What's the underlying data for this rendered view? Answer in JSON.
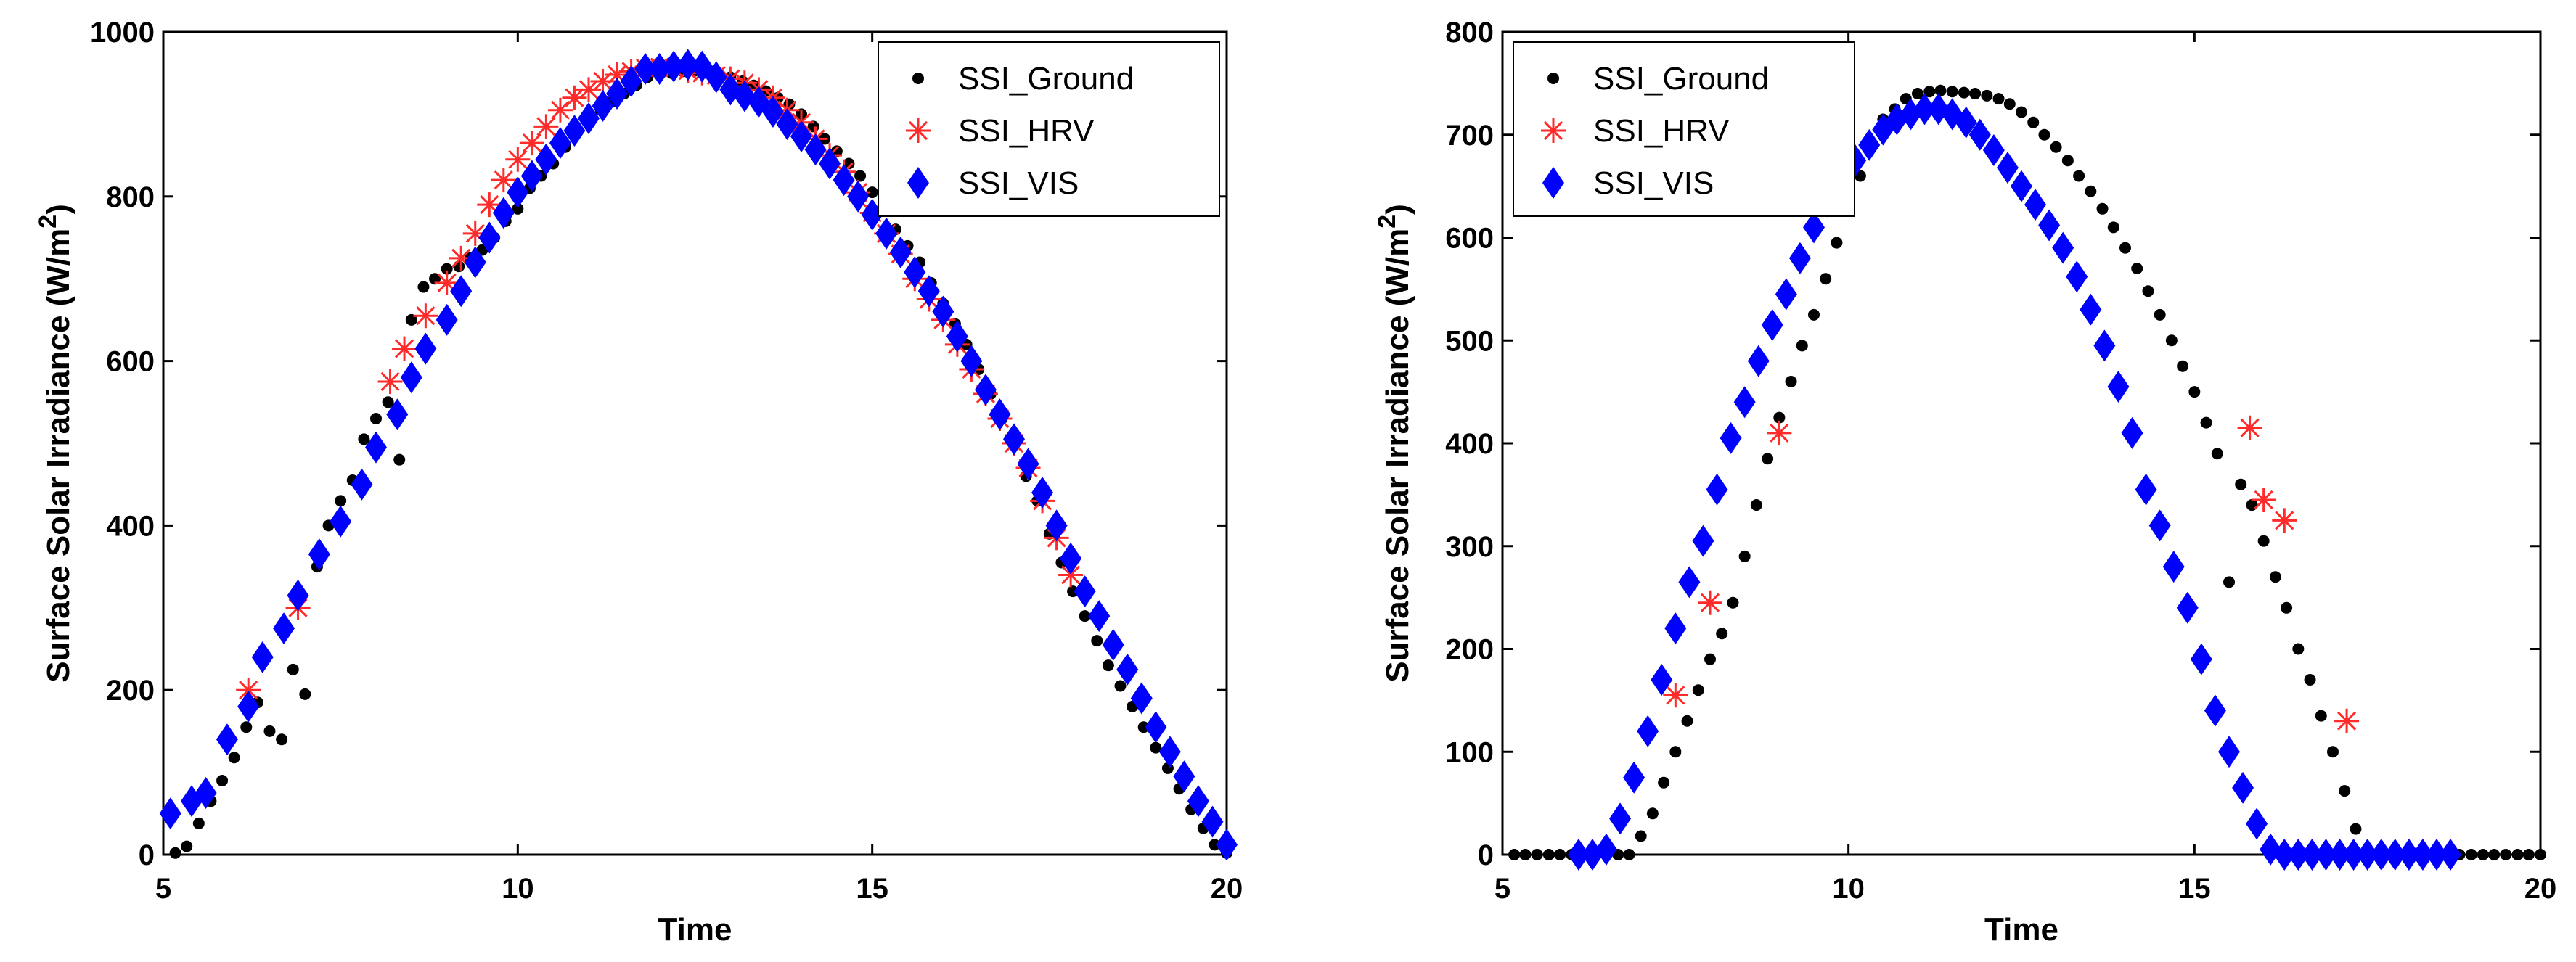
{
  "chart_data": [
    {
      "type": "scatter",
      "title": "",
      "xlabel": "Time",
      "ylabel": "Surface Solar Irradiance  (W/m",
      "ylabel_sup": "2",
      "ylabel_close": ")",
      "xlim": [
        5,
        20
      ],
      "ylim": [
        0,
        1000
      ],
      "xticks": [
        5,
        10,
        15,
        20
      ],
      "yticks": [
        0,
        200,
        400,
        600,
        800,
        1000
      ],
      "xtick_labels": [
        "5",
        "10",
        "15",
        "20"
      ],
      "ytick_labels": [
        "0",
        "200",
        "400",
        "600",
        "800",
        "1000"
      ],
      "legend_position": "top-right",
      "series": [
        {
          "name": "SSI_Ground",
          "marker": "dot",
          "color": "#000000",
          "x": [
            5.17,
            5.33,
            5.5,
            5.67,
            5.83,
            6.0,
            6.17,
            6.33,
            6.5,
            6.67,
            6.83,
            7.0,
            7.17,
            7.33,
            7.5,
            7.67,
            7.83,
            8.0,
            8.17,
            8.33,
            8.5,
            8.67,
            8.83,
            9.0,
            9.17,
            9.33,
            9.5,
            9.67,
            9.83,
            10.0,
            10.17,
            10.33,
            10.5,
            10.67,
            10.83,
            11.0,
            11.17,
            11.33,
            11.5,
            11.67,
            11.83,
            12.0,
            12.17,
            12.33,
            12.5,
            12.67,
            12.83,
            13.0,
            13.17,
            13.33,
            13.5,
            13.67,
            13.83,
            14.0,
            14.17,
            14.33,
            14.5,
            14.67,
            14.83,
            15.0,
            15.17,
            15.33,
            15.5,
            15.67,
            15.83,
            16.0,
            16.17,
            16.33,
            16.5,
            16.67,
            16.83,
            17.0,
            17.17,
            17.33,
            17.5,
            17.67,
            17.83,
            18.0,
            18.17,
            18.33,
            18.5,
            18.67,
            18.83,
            19.0,
            19.17,
            19.33,
            19.5,
            19.67,
            19.83,
            20.0
          ],
          "y": [
            2,
            10,
            38,
            65,
            90,
            118,
            155,
            185,
            150,
            140,
            225,
            195,
            350,
            400,
            430,
            455,
            505,
            530,
            550,
            480,
            650,
            690,
            700,
            712,
            715,
            725,
            735,
            750,
            770,
            785,
            810,
            825,
            840,
            860,
            880,
            890,
            905,
            915,
            925,
            935,
            945,
            948,
            950,
            952,
            953,
            950,
            948,
            945,
            940,
            935,
            928,
            920,
            912,
            900,
            885,
            870,
            855,
            840,
            825,
            805,
            785,
            760,
            740,
            720,
            695,
            670,
            645,
            620,
            590,
            560,
            530,
            500,
            460,
            430,
            390,
            355,
            320,
            290,
            260,
            230,
            205,
            180,
            155,
            130,
            105,
            80,
            55,
            32,
            12,
            2
          ]
        },
        {
          "name": "SSI_HRV",
          "marker": "asterisk",
          "color": "#ff2a2a",
          "x": [
            6.2,
            6.9,
            8.2,
            8.4,
            8.7,
            9.0,
            9.2,
            9.4,
            9.6,
            9.8,
            10.0,
            10.2,
            10.4,
            10.6,
            10.8,
            11.0,
            11.2,
            11.4,
            11.6,
            11.8,
            12.0,
            12.2,
            12.4,
            12.6,
            12.8,
            13.0,
            13.2,
            13.4,
            13.6,
            13.8,
            14.0,
            14.2,
            14.4,
            14.6,
            14.8,
            15.0,
            15.2,
            15.4,
            15.6,
            15.8,
            16.0,
            16.2,
            16.4,
            16.6,
            16.8,
            17.0,
            17.2,
            17.4,
            17.6,
            17.8
          ],
          "y": [
            200,
            300,
            575,
            615,
            655,
            695,
            725,
            755,
            790,
            820,
            845,
            865,
            885,
            905,
            920,
            930,
            940,
            948,
            952,
            956,
            957,
            956,
            953,
            950,
            947,
            943,
            938,
            930,
            920,
            905,
            890,
            870,
            850,
            830,
            805,
            780,
            755,
            730,
            700,
            675,
            650,
            620,
            590,
            560,
            530,
            500,
            470,
            430,
            385,
            340
          ]
        },
        {
          "name": "SSI_VIS",
          "marker": "diamond",
          "color": "#0000ff",
          "x": [
            5.1,
            5.4,
            5.6,
            5.9,
            6.2,
            6.4,
            6.7,
            6.9,
            7.2,
            7.5,
            7.8,
            8.0,
            8.3,
            8.5,
            8.7,
            9.0,
            9.2,
            9.4,
            9.6,
            9.8,
            10.0,
            10.2,
            10.4,
            10.6,
            10.8,
            11.0,
            11.2,
            11.4,
            11.6,
            11.8,
            12.0,
            12.2,
            12.4,
            12.6,
            12.8,
            13.0,
            13.2,
            13.4,
            13.6,
            13.8,
            14.0,
            14.2,
            14.4,
            14.6,
            14.8,
            15.0,
            15.2,
            15.4,
            15.6,
            15.8,
            16.0,
            16.2,
            16.4,
            16.6,
            16.8,
            17.0,
            17.2,
            17.4,
            17.6,
            17.8,
            18.0,
            18.2,
            18.4,
            18.6,
            18.8,
            19.0,
            19.2,
            19.4,
            19.6,
            19.8,
            20.0
          ],
          "y": [
            50,
            65,
            75,
            140,
            180,
            240,
            275,
            315,
            365,
            405,
            450,
            495,
            535,
            580,
            615,
            650,
            685,
            720,
            750,
            780,
            805,
            825,
            845,
            865,
            880,
            895,
            910,
            925,
            940,
            955,
            955,
            958,
            960,
            958,
            945,
            930,
            922,
            915,
            903,
            888,
            873,
            857,
            840,
            820,
            800,
            778,
            755,
            732,
            708,
            685,
            660,
            630,
            600,
            565,
            535,
            505,
            475,
            440,
            400,
            360,
            320,
            290,
            255,
            225,
            190,
            155,
            125,
            95,
            65,
            40,
            12
          ]
        }
      ]
    },
    {
      "type": "scatter",
      "title": "",
      "xlabel": "Time",
      "ylabel": "Surface Solar Irradiance  (W/m",
      "ylabel_sup": "2",
      "ylabel_close": ")",
      "xlim": [
        5,
        20
      ],
      "ylim": [
        0,
        800
      ],
      "xticks": [
        5,
        10,
        15,
        20
      ],
      "yticks": [
        0,
        100,
        200,
        300,
        400,
        500,
        600,
        700,
        800
      ],
      "xtick_labels": [
        "5",
        "10",
        "15",
        "20"
      ],
      "ytick_labels": [
        "0",
        "100",
        "200",
        "300",
        "400",
        "500",
        "600",
        "700",
        "800"
      ],
      "legend_position": "top-left",
      "series": [
        {
          "name": "SSI_Ground",
          "marker": "dot",
          "color": "#000000",
          "x": [
            5.17,
            5.33,
            5.5,
            5.67,
            5.83,
            6.0,
            6.17,
            6.33,
            6.5,
            6.67,
            6.83,
            7.0,
            7.17,
            7.33,
            7.5,
            7.67,
            7.83,
            8.0,
            8.17,
            8.33,
            8.5,
            8.67,
            8.83,
            9.0,
            9.17,
            9.33,
            9.5,
            9.67,
            9.83,
            10.0,
            10.17,
            10.33,
            10.5,
            10.67,
            10.83,
            11.0,
            11.17,
            11.33,
            11.5,
            11.67,
            11.83,
            12.0,
            12.17,
            12.33,
            12.5,
            12.67,
            12.83,
            13.0,
            13.17,
            13.33,
            13.5,
            13.67,
            13.83,
            14.0,
            14.17,
            14.33,
            14.5,
            14.67,
            14.83,
            15.0,
            15.17,
            15.33,
            15.5,
            15.67,
            15.83,
            16.0,
            16.17,
            16.33,
            16.5,
            16.67,
            16.83,
            17.0,
            17.17,
            17.33,
            17.5,
            17.67,
            17.83,
            18.0,
            18.17,
            18.33,
            18.5,
            18.67,
            18.83,
            19.0,
            19.17,
            19.33,
            19.5,
            19.67,
            19.83,
            20.0
          ],
          "y": [
            0,
            0,
            0,
            0,
            0,
            0,
            0,
            0,
            0,
            0,
            0,
            18,
            40,
            70,
            100,
            130,
            160,
            190,
            215,
            245,
            290,
            340,
            385,
            425,
            460,
            495,
            525,
            560,
            595,
            630,
            660,
            690,
            715,
            725,
            735,
            740,
            742,
            743,
            742,
            741,
            740,
            738,
            735,
            730,
            722,
            712,
            700,
            688,
            675,
            660,
            645,
            628,
            610,
            590,
            570,
            548,
            525,
            500,
            475,
            450,
            420,
            390,
            265,
            360,
            340,
            305,
            270,
            240,
            200,
            170,
            135,
            100,
            62,
            25,
            5,
            0,
            0,
            0,
            0,
            0,
            0,
            0,
            0,
            0,
            0,
            0,
            0,
            0,
            0,
            0
          ]
        },
        {
          "name": "SSI_HRV",
          "marker": "asterisk",
          "color": "#ff2a2a",
          "x": [
            7.5,
            8.0,
            9.0,
            15.8,
            16.0,
            16.3,
            17.2
          ],
          "y": [
            155,
            245,
            410,
            415,
            345,
            325,
            130
          ]
        },
        {
          "name": "SSI_VIS",
          "marker": "diamond",
          "color": "#0000ff",
          "x": [
            6.1,
            6.3,
            6.5,
            6.7,
            6.9,
            7.1,
            7.3,
            7.5,
            7.7,
            7.9,
            8.1,
            8.3,
            8.5,
            8.7,
            8.9,
            9.1,
            9.3,
            9.5,
            9.7,
            9.9,
            10.1,
            10.3,
            10.5,
            10.7,
            10.9,
            11.1,
            11.3,
            11.5,
            11.7,
            11.9,
            12.1,
            12.3,
            12.5,
            12.7,
            12.9,
            13.1,
            13.3,
            13.5,
            13.7,
            13.9,
            14.1,
            14.3,
            14.5,
            14.7,
            14.9,
            15.1,
            15.3,
            15.5,
            15.7,
            15.9,
            16.1,
            16.3,
            16.5,
            16.7,
            16.9,
            17.1,
            17.3,
            17.5,
            17.7,
            17.9,
            18.1,
            18.3,
            18.5,
            18.7
          ],
          "y": [
            0,
            0,
            5,
            35,
            75,
            120,
            170,
            220,
            265,
            305,
            355,
            405,
            440,
            480,
            515,
            545,
            580,
            610,
            635,
            655,
            675,
            690,
            705,
            715,
            720,
            725,
            725,
            720,
            712,
            700,
            685,
            668,
            650,
            632,
            612,
            590,
            562,
            530,
            495,
            455,
            410,
            355,
            320,
            280,
            240,
            190,
            140,
            100,
            65,
            30,
            5,
            0,
            0,
            0,
            0,
            0,
            0,
            0,
            0,
            0,
            0,
            0,
            0,
            0
          ]
        }
      ]
    }
  ]
}
